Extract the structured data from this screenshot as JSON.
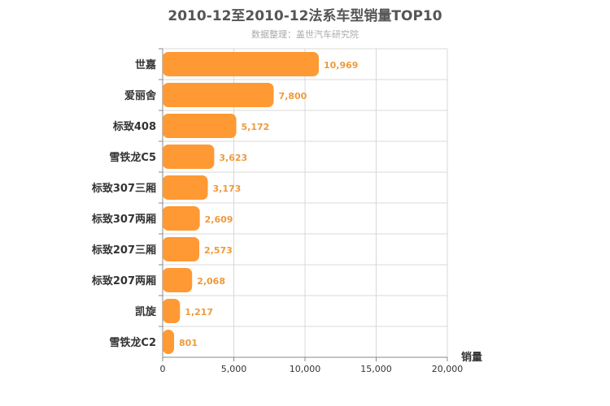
{
  "header": {
    "title": "2010-12至2010-12法系车型销量TOP10",
    "subtitle": "数据整理：盖世汽车研究院"
  },
  "chart_data": {
    "type": "bar",
    "orientation": "horizontal",
    "title": "2010-12至2010-12法系车型销量TOP10",
    "subtitle": "数据整理：盖世汽车研究院",
    "categories": [
      "世嘉",
      "爱丽舍",
      "标致408",
      "雪铁龙C5",
      "标致307三厢",
      "标致307两厢",
      "标致207三厢",
      "标致207两厢",
      "凯旋",
      "雪铁龙C2"
    ],
    "values": [
      10969,
      7800,
      5172,
      3623,
      3173,
      2609,
      2573,
      2068,
      1217,
      801
    ],
    "value_labels": [
      "10,969",
      "7,800",
      "5,172",
      "3,623",
      "3,173",
      "2,609",
      "2,573",
      "2,068",
      "1,217",
      "801"
    ],
    "xlabel": "销量",
    "ylabel": "",
    "xlim": [
      0,
      20000
    ],
    "x_ticks": [
      0,
      5000,
      10000,
      15000,
      20000
    ],
    "x_tick_labels": [
      "0",
      "5,000",
      "10,000",
      "15,000",
      "20,000"
    ],
    "grid": true,
    "bar_color": "#ff9933",
    "data_label_color": "#ef9a3c"
  }
}
